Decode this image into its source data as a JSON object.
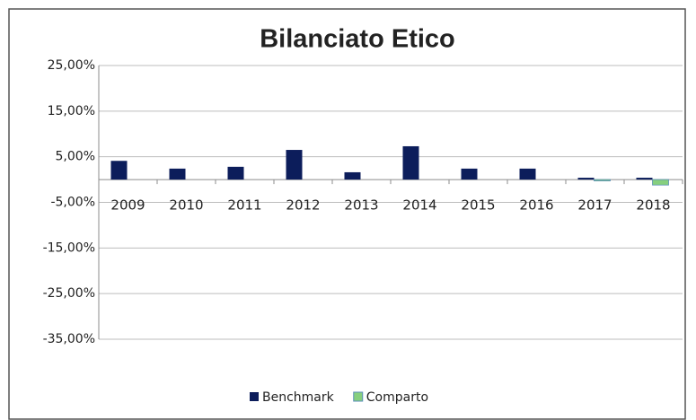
{
  "chart_data": {
    "type": "bar",
    "title": "Bilanciato  Etico",
    "categories": [
      "2009",
      "2010",
      "2011",
      "2012",
      "2013",
      "2014",
      "2015",
      "2016",
      "2017",
      "2018"
    ],
    "series": [
      {
        "name": "Benchmark",
        "color": "#0c1d5b",
        "values": [
          4.1,
          2.4,
          2.8,
          6.5,
          1.6,
          7.3,
          2.4,
          2.4,
          0.4,
          0.4
        ]
      },
      {
        "name": "Comparto",
        "color": "#86cf7e",
        "values": [
          null,
          null,
          null,
          null,
          null,
          null,
          null,
          null,
          -0.3,
          -1.2
        ]
      }
    ],
    "ylim": [
      -35,
      25
    ],
    "yticks": [
      {
        "value": 25,
        "label": "25,00%"
      },
      {
        "value": 15,
        "label": "15,00%"
      },
      {
        "value": 5,
        "label": "5,00%"
      },
      {
        "value": -5,
        "label": "-5,00%"
      },
      {
        "value": -15,
        "label": "-15,00%"
      },
      {
        "value": -25,
        "label": "-25,00%"
      },
      {
        "value": -35,
        "label": "-35,00%"
      }
    ],
    "grid": true,
    "legend": "bottom"
  }
}
